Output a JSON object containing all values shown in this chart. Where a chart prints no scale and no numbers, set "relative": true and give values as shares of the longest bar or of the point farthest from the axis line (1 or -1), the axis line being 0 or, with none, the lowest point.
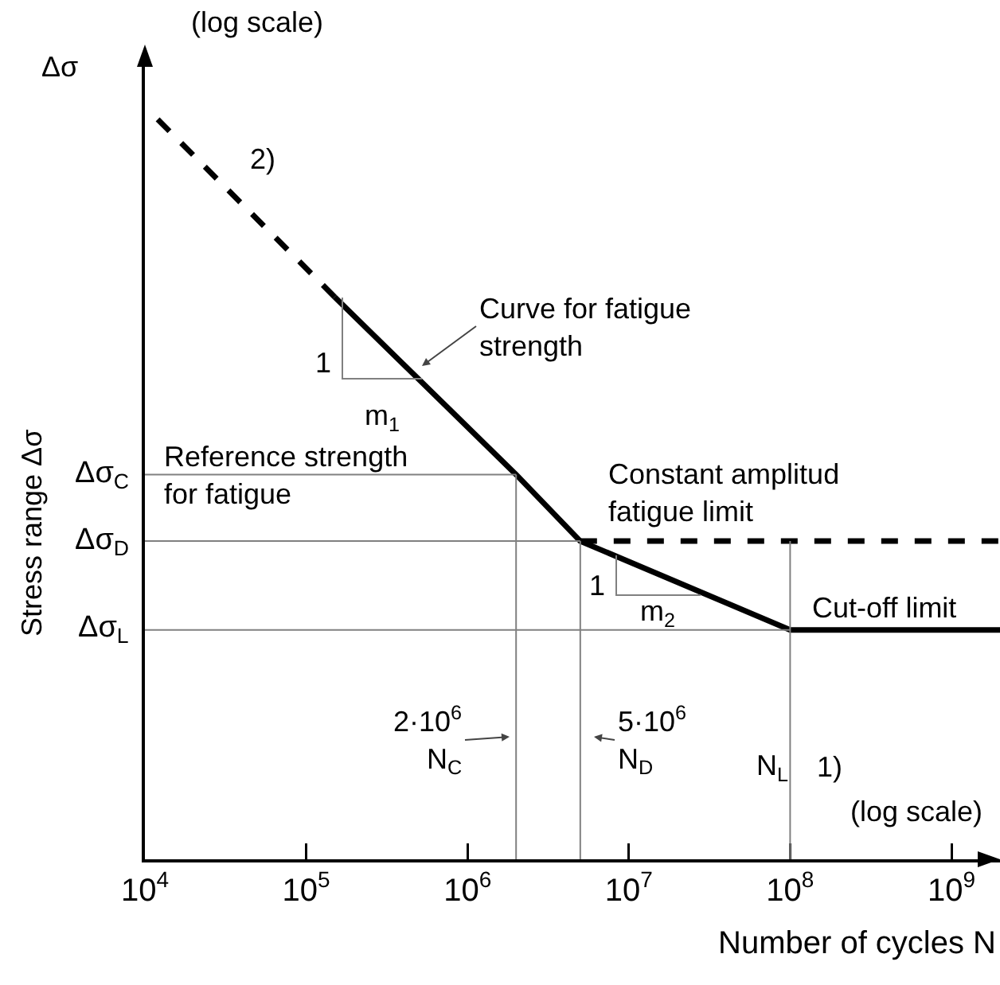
{
  "chart_data": {
    "type": "line",
    "relative": true,
    "log": "x",
    "xlabel": "Number of cycles N",
    "ylabel": "Stress range Δσ",
    "xlim": [
      10000,
      2000000000
    ],
    "xticks": [
      {
        "value": 10000,
        "label": "10$^{4}$"
      },
      {
        "value": 100000,
        "label": "10$^{5}$"
      },
      {
        "value": 1000000,
        "label": "10$^{6}$"
      },
      {
        "value": 10000000,
        "label": "10$^{7}$"
      },
      {
        "value": 100000000,
        "label": "10$^{8}$"
      },
      {
        "value": 1000000000,
        "label": "10$^{9}$"
      }
    ],
    "series": [
      {
        "color": "#000000",
        "line_style": "dashed",
        "x": [
          12000,
          150000
        ],
        "values": [
          1,
          0.76
        ]
      },
      {
        "color": "#000000",
        "line_style": "solid",
        "x": [
          150000,
          2000000,
          5000000,
          100000000,
          2000000000
        ],
        "values": [
          0.76,
          0.52,
          0.43,
          0.31,
          0.31
        ]
      },
      {
        "color": "#000000",
        "line_style": "dashed",
        "x": [
          5000000,
          2000000000
        ],
        "values": [
          0.43,
          0.43
        ]
      }
    ],
    "ref_lines": [
      {
        "axis": "y",
        "value": 0.52,
        "label": "Δσ$_{C}$",
        "color": "#808080"
      },
      {
        "axis": "y",
        "value": 0.43,
        "label": "Δσ$_{D}$",
        "color": "#808080"
      },
      {
        "axis": "y",
        "value": 0.31,
        "label": "Δσ$_{L}$",
        "color": "#808080"
      },
      {
        "axis": "x",
        "value": 2000000,
        "label": null,
        "color": "#808080"
      },
      {
        "axis": "x",
        "value": 5000000,
        "label": null,
        "color": "#808080"
      },
      {
        "axis": "x",
        "value": 100000000,
        "label": null,
        "color": "#808080"
      }
    ],
    "annotations": [
      "(log scale)",
      "2)",
      "Curve for fatigue\nstrength",
      "1",
      "m$_{1}$",
      "Reference strength\nfor fatigue",
      "Constant amplitud\nfatigue limit",
      "1",
      "m$_{2}$",
      "Cut-off limit",
      "2·10$^{6}$\nN$_{C}$",
      "5·10$^{6}$\nN$_{D}$",
      "N$_{L}$",
      "1)",
      "(log scale)",
      "Δσ"
    ]
  }
}
